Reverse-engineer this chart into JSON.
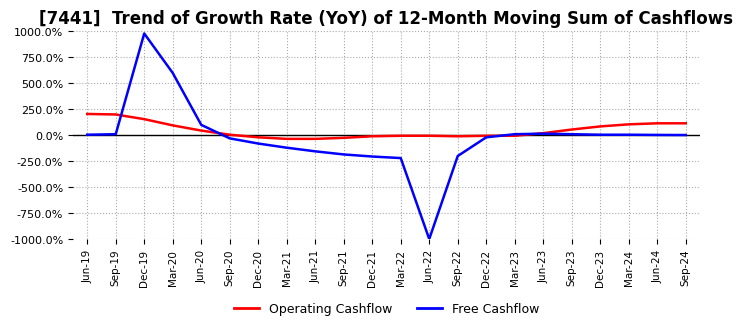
{
  "title": "[7441]  Trend of Growth Rate (YoY) of 12-Month Moving Sum of Cashflows",
  "ylim": [
    -1000,
    1000
  ],
  "yticks": [
    -1000,
    -750,
    -500,
    -250,
    0,
    250,
    500,
    750,
    1000
  ],
  "ytick_labels": [
    "-1000.0%",
    "-750.0%",
    "-500.0%",
    "-250.0%",
    "0.0%",
    "250.0%",
    "500.0%",
    "750.0%",
    "1000.0%"
  ],
  "x_labels": [
    "Jun-19",
    "Sep-19",
    "Dec-19",
    "Mar-20",
    "Jun-20",
    "Sep-20",
    "Dec-20",
    "Mar-21",
    "Jun-21",
    "Sep-21",
    "Dec-21",
    "Mar-22",
    "Jun-22",
    "Sep-22",
    "Dec-22",
    "Mar-23",
    "Jun-23",
    "Sep-23",
    "Dec-23",
    "Mar-24",
    "Jun-24",
    "Sep-24"
  ],
  "operating_cashflow": [
    205,
    200,
    155,
    95,
    45,
    5,
    -20,
    -35,
    -35,
    -25,
    -10,
    -5,
    -5,
    -10,
    -5,
    -5,
    20,
    55,
    85,
    105,
    115,
    115
  ],
  "free_cashflow": [
    5,
    10,
    980,
    600,
    100,
    -30,
    -80,
    -120,
    -155,
    -185,
    -205,
    -220,
    -1000,
    -200,
    -20,
    10,
    15,
    10,
    5,
    5,
    3,
    2
  ],
  "operating_color": "#ff0000",
  "free_color": "#0000ff",
  "background_color": "#ffffff",
  "grid_color": "#aaaaaa",
  "title_fontsize": 12,
  "legend_labels": [
    "Operating Cashflow",
    "Free Cashflow"
  ]
}
